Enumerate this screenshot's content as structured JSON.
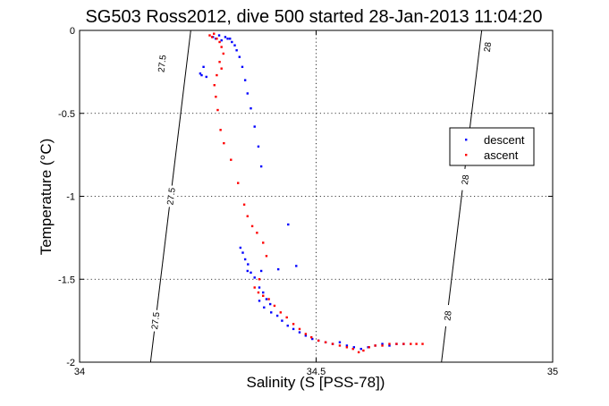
{
  "chart_data": {
    "type": "scatter",
    "title": "SG503 Ross2012, dive 500 started 28-Jan-2013 11:04:20",
    "xlabel": "Salinity (S [PSS-78])",
    "ylabel": "Temperature (°C)",
    "xlim": [
      34,
      35
    ],
    "ylim": [
      -2,
      0
    ],
    "x_ticks": [
      "34",
      "34.5",
      "35"
    ],
    "y_ticks": [
      "0",
      "-0.5",
      "-1",
      "-1.5",
      "-2"
    ],
    "grid": true,
    "legend_position": "right",
    "contours": [
      {
        "label": "27.5",
        "points": [
          [
            34.15,
            -2.0
          ],
          [
            34.235,
            0.0
          ]
        ],
        "label_positions": [
          [
            34.174,
            -0.2
          ],
          [
            34.193,
            -1.0
          ],
          [
            34.16,
            -1.75
          ]
        ]
      },
      {
        "label": "28",
        "points": [
          [
            34.765,
            -2.0
          ],
          [
            34.85,
            0.0
          ]
        ],
        "label_positions": [
          [
            34.862,
            -0.1
          ],
          [
            34.815,
            -0.9
          ],
          [
            34.778,
            -1.72
          ]
        ]
      }
    ],
    "series": [
      {
        "name": "descent",
        "color": "#0000ff",
        "points": [
          [
            34.255,
            -0.26
          ],
          [
            34.258,
            -0.27
          ],
          [
            34.262,
            -0.22
          ],
          [
            34.268,
            -0.28
          ],
          [
            34.282,
            -0.04
          ],
          [
            34.288,
            -0.05
          ],
          [
            34.295,
            -0.03
          ],
          [
            34.3,
            -0.06
          ],
          [
            34.308,
            -0.04
          ],
          [
            34.313,
            -0.05
          ],
          [
            34.318,
            -0.05
          ],
          [
            34.322,
            -0.07
          ],
          [
            34.328,
            -0.09
          ],
          [
            34.332,
            -0.12
          ],
          [
            34.338,
            -0.16
          ],
          [
            34.344,
            -0.22
          ],
          [
            34.35,
            -0.3
          ],
          [
            34.355,
            -0.38
          ],
          [
            34.362,
            -0.47
          ],
          [
            34.37,
            -0.58
          ],
          [
            34.378,
            -0.7
          ],
          [
            34.384,
            -0.82
          ],
          [
            34.441,
            -1.17
          ],
          [
            34.458,
            -1.42
          ],
          [
            34.34,
            -1.31
          ],
          [
            34.345,
            -1.34
          ],
          [
            34.35,
            -1.38
          ],
          [
            34.356,
            -1.41
          ],
          [
            34.362,
            -1.46
          ],
          [
            34.37,
            -1.49
          ],
          [
            34.355,
            -1.45
          ],
          [
            34.384,
            -1.45
          ],
          [
            34.42,
            -1.44
          ],
          [
            34.38,
            -1.55
          ],
          [
            34.388,
            -1.58
          ],
          [
            34.395,
            -1.62
          ],
          [
            34.403,
            -1.65
          ],
          [
            34.38,
            -1.63
          ],
          [
            34.39,
            -1.67
          ],
          [
            34.405,
            -1.7
          ],
          [
            34.418,
            -1.72
          ],
          [
            34.428,
            -1.75
          ],
          [
            34.44,
            -1.78
          ],
          [
            34.452,
            -1.8
          ],
          [
            34.465,
            -1.82
          ],
          [
            34.478,
            -1.84
          ],
          [
            34.492,
            -1.86
          ],
          [
            34.505,
            -1.87
          ],
          [
            34.52,
            -1.88
          ],
          [
            34.535,
            -1.89
          ],
          [
            34.55,
            -1.88
          ],
          [
            34.565,
            -1.9
          ],
          [
            34.58,
            -1.91
          ],
          [
            34.595,
            -1.92
          ],
          [
            34.61,
            -1.91
          ],
          [
            34.625,
            -1.9
          ],
          [
            34.64,
            -1.89
          ],
          [
            34.655,
            -1.9
          ],
          [
            34.67,
            -1.89
          ],
          [
            34.685,
            -1.89
          ]
        ]
      },
      {
        "name": "ascent",
        "color": "#ff0000",
        "points": [
          [
            34.275,
            -0.03
          ],
          [
            34.28,
            -0.04
          ],
          [
            34.284,
            -0.02
          ],
          [
            34.29,
            -0.05
          ],
          [
            34.296,
            -0.07
          ],
          [
            34.3,
            -0.1
          ],
          [
            34.304,
            -0.14
          ],
          [
            34.296,
            -0.19
          ],
          [
            34.3,
            -0.23
          ],
          [
            34.29,
            -0.27
          ],
          [
            34.285,
            -0.33
          ],
          [
            34.288,
            -0.4
          ],
          [
            34.292,
            -0.48
          ],
          [
            34.298,
            -0.6
          ],
          [
            34.305,
            -0.68
          ],
          [
            34.32,
            -0.78
          ],
          [
            34.335,
            -0.92
          ],
          [
            34.348,
            -1.05
          ],
          [
            34.355,
            -1.12
          ],
          [
            34.365,
            -1.18
          ],
          [
            34.375,
            -1.22
          ],
          [
            34.388,
            -1.28
          ],
          [
            34.395,
            -1.36
          ],
          [
            34.38,
            -1.5
          ],
          [
            34.37,
            -1.55
          ],
          [
            34.378,
            -1.58
          ],
          [
            34.388,
            -1.6
          ],
          [
            34.4,
            -1.62
          ],
          [
            34.412,
            -1.66
          ],
          [
            34.425,
            -1.7
          ],
          [
            34.438,
            -1.73
          ],
          [
            34.452,
            -1.77
          ],
          [
            34.465,
            -1.8
          ],
          [
            34.478,
            -1.83
          ],
          [
            34.49,
            -1.85
          ],
          [
            34.505,
            -1.87
          ],
          [
            34.52,
            -1.88
          ],
          [
            34.535,
            -1.89
          ],
          [
            34.55,
            -1.9
          ],
          [
            34.565,
            -1.91
          ],
          [
            34.578,
            -1.92
          ],
          [
            34.59,
            -1.94
          ],
          [
            34.6,
            -1.93
          ],
          [
            34.612,
            -1.91
          ],
          [
            34.625,
            -1.9
          ],
          [
            34.64,
            -1.9
          ],
          [
            34.655,
            -1.89
          ],
          [
            34.67,
            -1.89
          ],
          [
            34.685,
            -1.89
          ],
          [
            34.7,
            -1.89
          ],
          [
            34.712,
            -1.89
          ],
          [
            34.725,
            -1.89
          ]
        ]
      }
    ]
  }
}
